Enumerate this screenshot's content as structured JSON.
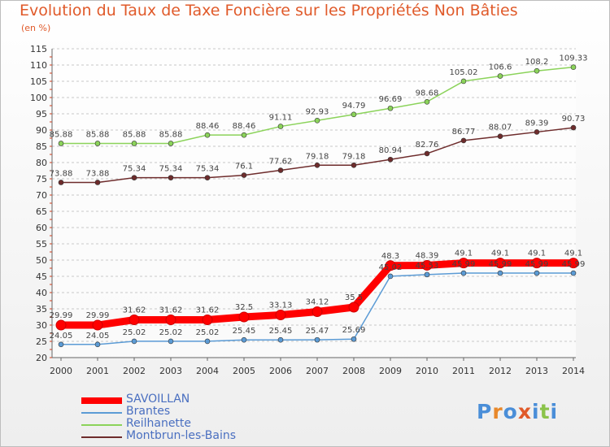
{
  "title": "Evolution du Taux de Taxe Foncière sur les Propriétés Non Bâties",
  "unit_label": "(en %)",
  "logo": {
    "text": "Proxiti",
    "letter_colors": [
      "#4a8ed8",
      "#e8882a",
      "#4a8ed8",
      "#e05a2a",
      "#4a8ed8",
      "#8bc34a",
      "#4a8ed8"
    ]
  },
  "legend": [
    {
      "label": "SAVOILLAN",
      "color": "#ff0000"
    },
    {
      "label": "Brantes",
      "color": "#5b9bd5"
    },
    {
      "label": "Reilhanette",
      "color": "#8bd35a"
    },
    {
      "label": "Montbrun-les-Bains",
      "color": "#6e2c2c"
    }
  ],
  "chart_data": {
    "type": "line",
    "title": "Evolution du Taux de Taxe Foncière sur les Propriétés Non Bâties",
    "ylabel": "(en %)",
    "xlabel": "",
    "x": [
      "2000",
      "2001",
      "2002",
      "2003",
      "2004",
      "2005",
      "2006",
      "2007",
      "2008",
      "2009",
      "2010",
      "2011",
      "2012",
      "2013",
      "2014"
    ],
    "ylim": [
      20,
      115
    ],
    "yticks": [
      20,
      25,
      30,
      35,
      40,
      45,
      50,
      55,
      60,
      65,
      70,
      75,
      80,
      85,
      90,
      95,
      100,
      105,
      110,
      115
    ],
    "grid": "horizontal dashed",
    "legend_position": "bottom-left",
    "series": [
      {
        "name": "SAVOILLAN",
        "color": "#ff0000",
        "values": [
          29.99,
          29.99,
          31.62,
          31.62,
          31.62,
          32.5,
          33.13,
          34.12,
          35.5,
          48.3,
          48.39,
          49.1,
          49.1,
          49.1,
          49.1
        ],
        "labels": [
          "29.99",
          "29.99",
          "31.62",
          "31.62",
          "31.62",
          "32.5",
          "33.13",
          "34.12",
          "35.5",
          "48.3",
          "48.39",
          "49.1",
          "49.1",
          "49.1",
          "49.1"
        ]
      },
      {
        "name": "Brantes",
        "color": "#5b9bd5",
        "values": [
          24.05,
          24.05,
          25.02,
          25.02,
          25.02,
          25.45,
          25.45,
          25.47,
          25.69,
          45.02,
          45.53,
          45.99,
          45.99,
          45.99,
          45.99
        ],
        "labels": [
          "24.05",
          "24.05",
          "25.02",
          "25.02",
          "25.02",
          "25.45",
          "25.45",
          "25.47",
          "25.69",
          "45.02",
          "45.53",
          "45.99",
          "45.99",
          "45.99",
          "45.99"
        ]
      },
      {
        "name": "Reilhanette",
        "color": "#8bd35a",
        "values": [
          85.88,
          85.88,
          85.88,
          85.88,
          88.46,
          88.46,
          91.11,
          92.93,
          94.79,
          96.69,
          98.68,
          105.02,
          106.6,
          108.2,
          109.33
        ],
        "labels": [
          "85.88",
          "85.88",
          "85.88",
          "85.88",
          "88.46",
          "88.46",
          "91.11",
          "92.93",
          "94.79",
          "96.69",
          "98.68",
          "105.02",
          "106.6",
          "108.2",
          "109.33"
        ]
      },
      {
        "name": "Montbrun-les-Bains",
        "color": "#6e2c2c",
        "values": [
          73.88,
          73.88,
          75.34,
          75.34,
          75.34,
          76.1,
          77.62,
          79.18,
          79.18,
          80.94,
          82.76,
          86.77,
          88.07,
          89.39,
          90.73
        ],
        "labels": [
          "73.88",
          "73.88",
          "75.34",
          "75.34",
          "75.34",
          "76.1",
          "77.62",
          "79.18",
          "79.18",
          "80.94",
          "82.76",
          "86.77",
          "88.07",
          "89.39",
          "90.73"
        ]
      }
    ]
  }
}
